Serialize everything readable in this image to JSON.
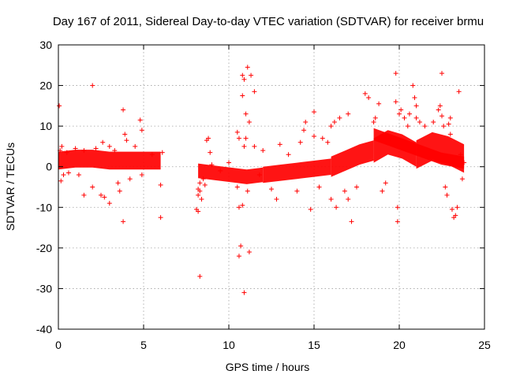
{
  "chart_data": {
    "type": "scatter",
    "title": "Day 167 of 2011, Sidereal Day-to-day VTEC variation (SDTVAR) for receiver brmu",
    "xlabel": "GPS time / hours",
    "ylabel": "SDTVAR / TECUs",
    "xlim": [
      0,
      25
    ],
    "ylim": [
      -40,
      30
    ],
    "xticks": [
      0,
      5,
      10,
      15,
      20,
      25
    ],
    "yticks": [
      -40,
      -30,
      -20,
      -10,
      0,
      10,
      20,
      30
    ],
    "x_tick_labels": [
      "0",
      "5",
      "10",
      "15",
      "20",
      "25"
    ],
    "y_tick_labels": [
      "-40",
      "-30",
      "-20",
      "-10",
      "0",
      "10",
      "20",
      "30"
    ],
    "grid": true,
    "marker": "+",
    "color": "#ff0000",
    "dense_bands": [
      {
        "x": [
          0.0,
          6.0
        ],
        "center": [
          1.5,
          2.0,
          2.0,
          1.5,
          1.5,
          1.5,
          1.5
        ],
        "half_width": 2.2
      },
      {
        "x": [
          8.2,
          12.0
        ],
        "center": [
          -1.0,
          -1.5,
          -2.0,
          -2.5,
          -2.0
        ],
        "half_width": 1.8
      },
      {
        "x": [
          12.0,
          16.0
        ],
        "center": [
          -2.0,
          -1.5,
          -1.0,
          -0.5,
          0.0
        ],
        "half_width": 2.0
      },
      {
        "x": [
          16.0,
          18.5
        ],
        "center": [
          0.0,
          1.5,
          3.0,
          4.0
        ],
        "half_width": 2.5
      },
      {
        "x": [
          18.5,
          21.0
        ],
        "center": [
          4.0,
          6.0,
          5.0,
          3.0
        ],
        "half_width": 3.0
      },
      {
        "x": [
          21.0,
          23.8
        ],
        "center": [
          3.0,
          5.0,
          4.0,
          2.0
        ],
        "half_width": 3.5
      },
      {
        "x": [
          18.5,
          23.8
        ],
        "center": [
          8.0,
          6.0,
          4.0,
          2.0,
          1.0
        ],
        "half_width": 1.5
      }
    ],
    "series": [
      {
        "name": "SDTVAR",
        "points": [
          [
            0.05,
            15
          ],
          [
            0.1,
            4
          ],
          [
            0.15,
            -3.5
          ],
          [
            0.2,
            5
          ],
          [
            0.3,
            -2
          ],
          [
            0.5,
            3.5
          ],
          [
            0.6,
            -1.5
          ],
          [
            1.0,
            4.5
          ],
          [
            1.2,
            -2
          ],
          [
            1.5,
            -7
          ],
          [
            1.5,
            4
          ],
          [
            2.0,
            20
          ],
          [
            2.0,
            -5
          ],
          [
            2.2,
            4.5
          ],
          [
            2.5,
            -7
          ],
          [
            2.6,
            6
          ],
          [
            2.7,
            -7.5
          ],
          [
            3.0,
            -9
          ],
          [
            3.0,
            5
          ],
          [
            3.3,
            4
          ],
          [
            3.5,
            -4
          ],
          [
            3.6,
            -6
          ],
          [
            3.8,
            14
          ],
          [
            3.8,
            -13.5
          ],
          [
            3.9,
            8
          ],
          [
            4.0,
            6.5
          ],
          [
            4.2,
            -3
          ],
          [
            4.5,
            5
          ],
          [
            4.8,
            11.5
          ],
          [
            4.9,
            9
          ],
          [
            4.9,
            -2
          ],
          [
            5.5,
            3
          ],
          [
            6.0,
            -4.5
          ],
          [
            6.0,
            -12.5
          ],
          [
            6.1,
            3.5
          ],
          [
            8.1,
            -10.5
          ],
          [
            8.2,
            -11
          ],
          [
            8.2,
            -7
          ],
          [
            8.2,
            -5.5
          ],
          [
            8.3,
            -4
          ],
          [
            8.3,
            -6
          ],
          [
            8.3,
            -27
          ],
          [
            8.4,
            -8
          ],
          [
            8.5,
            -3
          ],
          [
            8.6,
            -4.5
          ],
          [
            8.7,
            6.5
          ],
          [
            8.8,
            7
          ],
          [
            8.9,
            3.5
          ],
          [
            9.0,
            0.5
          ],
          [
            9.5,
            -1
          ],
          [
            10.0,
            1
          ],
          [
            10.5,
            8.5
          ],
          [
            10.5,
            -5
          ],
          [
            10.6,
            7
          ],
          [
            10.6,
            -10
          ],
          [
            10.6,
            -22
          ],
          [
            10.7,
            -19.5
          ],
          [
            10.8,
            -9.5
          ],
          [
            10.8,
            22.5
          ],
          [
            10.8,
            17.5
          ],
          [
            10.9,
            21.5
          ],
          [
            10.9,
            -31
          ],
          [
            10.9,
            5
          ],
          [
            11.0,
            7
          ],
          [
            11.0,
            13
          ],
          [
            11.1,
            24.5
          ],
          [
            11.1,
            -6
          ],
          [
            11.2,
            11
          ],
          [
            11.2,
            -21
          ],
          [
            11.3,
            22.5
          ],
          [
            11.5,
            18.5
          ],
          [
            11.5,
            5
          ],
          [
            11.8,
            -2
          ],
          [
            12.0,
            4
          ],
          [
            12.5,
            -5.5
          ],
          [
            12.8,
            -8
          ],
          [
            13.0,
            5.5
          ],
          [
            13.5,
            3
          ],
          [
            14.0,
            -6
          ],
          [
            14.2,
            6
          ],
          [
            14.4,
            9
          ],
          [
            14.5,
            11
          ],
          [
            14.8,
            -10.5
          ],
          [
            15.0,
            7.5
          ],
          [
            15.0,
            13.5
          ],
          [
            15.3,
            -5
          ],
          [
            15.5,
            7
          ],
          [
            15.8,
            6
          ],
          [
            16.0,
            10
          ],
          [
            16.0,
            -8
          ],
          [
            16.2,
            11
          ],
          [
            16.3,
            -10
          ],
          [
            16.5,
            12
          ],
          [
            16.8,
            -6
          ],
          [
            17.0,
            13
          ],
          [
            17.0,
            -8
          ],
          [
            17.2,
            -13.5
          ],
          [
            17.5,
            -5
          ],
          [
            18.0,
            18
          ],
          [
            18.2,
            17
          ],
          [
            18.5,
            11
          ],
          [
            18.6,
            12
          ],
          [
            18.8,
            15.5
          ],
          [
            19.0,
            -6
          ],
          [
            19.2,
            -4
          ],
          [
            19.5,
            7
          ],
          [
            19.8,
            16
          ],
          [
            19.8,
            23
          ],
          [
            19.9,
            -13.5
          ],
          [
            19.9,
            -10
          ],
          [
            20.0,
            13
          ],
          [
            20.1,
            14
          ],
          [
            20.3,
            12
          ],
          [
            20.5,
            10
          ],
          [
            20.6,
            13
          ],
          [
            20.8,
            20
          ],
          [
            20.9,
            17
          ],
          [
            21.0,
            15
          ],
          [
            21.0,
            12
          ],
          [
            21.2,
            11
          ],
          [
            21.5,
            10
          ],
          [
            22.0,
            11
          ],
          [
            22.3,
            14
          ],
          [
            22.4,
            15
          ],
          [
            22.5,
            12.5
          ],
          [
            22.5,
            23
          ],
          [
            22.6,
            10
          ],
          [
            22.7,
            -5
          ],
          [
            22.8,
            -7
          ],
          [
            22.9,
            10.5
          ],
          [
            23.0,
            12
          ],
          [
            23.0,
            8
          ],
          [
            23.1,
            -10.5
          ],
          [
            23.2,
            -12.5
          ],
          [
            23.3,
            -12
          ],
          [
            23.4,
            -10
          ],
          [
            23.5,
            18.5
          ],
          [
            23.6,
            3
          ],
          [
            23.7,
            -3
          ],
          [
            23.8,
            1
          ]
        ]
      }
    ]
  }
}
